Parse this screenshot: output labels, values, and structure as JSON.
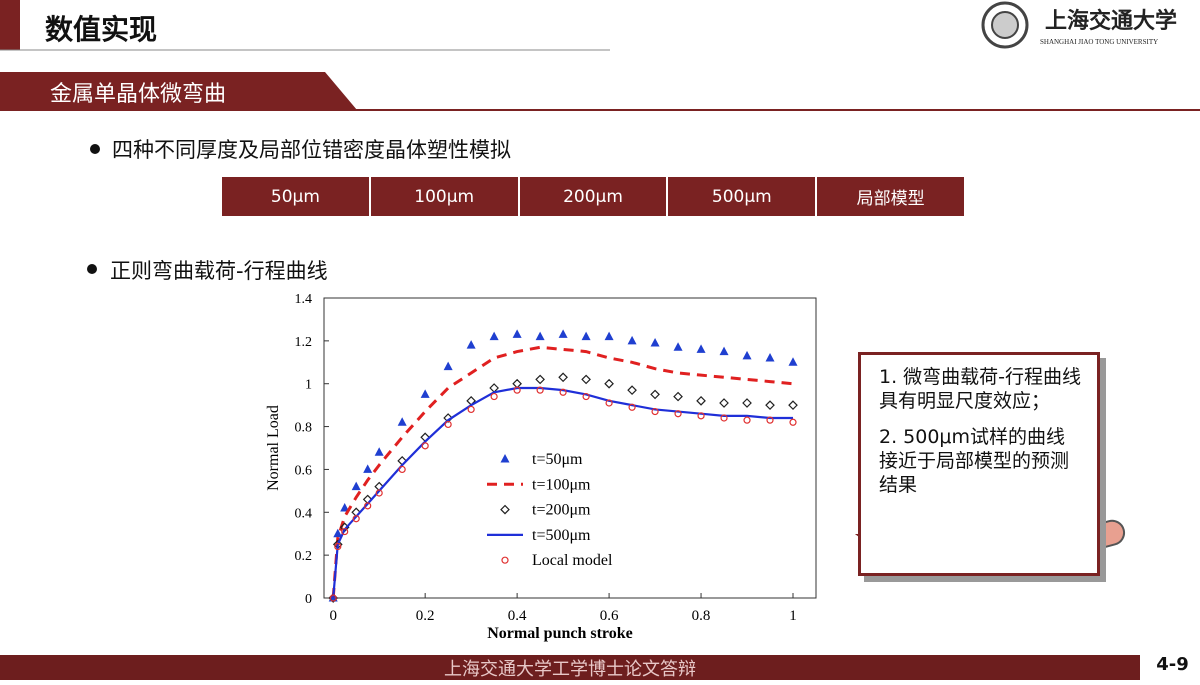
{
  "header": {
    "title": "数值实现",
    "university": "上海交通大学",
    "university_en": "SHANGHAI JIAO TONG UNIVERSITY"
  },
  "section": "金属单晶体微弯曲",
  "bullets": [
    "四种不同厚度及局部位错密度晶体塑性模拟",
    "正则弯曲载荷-行程曲线"
  ],
  "tabs": [
    "50μm",
    "100μm",
    "200μm",
    "500μm",
    "局部模型"
  ],
  "note": {
    "items": [
      "1. 微弯曲载荷-行程曲线具有明显尺度效应；",
      "2. 500μm试样的曲线接近于局部模型的预测结果"
    ]
  },
  "footer": {
    "text": "上海交通大学工学博士论文答辩",
    "page": "4-9"
  },
  "chart_data": {
    "type": "scatter",
    "xlabel": "Normal punch stroke",
    "ylabel": "Normal Load",
    "x": [
      0,
      0.01,
      0.025,
      0.05,
      0.075,
      0.1,
      0.15,
      0.2,
      0.25,
      0.3,
      0.35,
      0.4,
      0.45,
      0.5,
      0.55,
      0.6,
      0.65,
      0.7,
      0.75,
      0.8,
      0.85,
      0.9,
      0.95,
      1.0
    ],
    "series": [
      {
        "name": "t=50μm",
        "color": "#1f3fd0",
        "marker": "triangle",
        "values": [
          0,
          0.3,
          0.42,
          0.52,
          0.6,
          0.68,
          0.82,
          0.95,
          1.08,
          1.18,
          1.22,
          1.23,
          1.22,
          1.23,
          1.22,
          1.22,
          1.2,
          1.19,
          1.17,
          1.16,
          1.15,
          1.13,
          1.12,
          1.1
        ]
      },
      {
        "name": "t=100μm",
        "color": "#e02020",
        "marker": "dash",
        "values": [
          0,
          0.28,
          0.38,
          0.47,
          0.55,
          0.62,
          0.75,
          0.87,
          0.98,
          1.05,
          1.12,
          1.15,
          1.17,
          1.16,
          1.15,
          1.12,
          1.1,
          1.07,
          1.05,
          1.04,
          1.03,
          1.02,
          1.01,
          1.0
        ]
      },
      {
        "name": "t=200μm",
        "color": "#222222",
        "marker": "diamond",
        "values": [
          0,
          0.25,
          0.33,
          0.4,
          0.46,
          0.52,
          0.64,
          0.75,
          0.84,
          0.92,
          0.98,
          1.0,
          1.02,
          1.03,
          1.02,
          1.0,
          0.97,
          0.95,
          0.94,
          0.92,
          0.91,
          0.91,
          0.9,
          0.9
        ]
      },
      {
        "name": "t=500μm",
        "color": "#1f2fd8",
        "marker": "line",
        "values": [
          0,
          0.25,
          0.32,
          0.38,
          0.44,
          0.5,
          0.62,
          0.73,
          0.83,
          0.9,
          0.96,
          0.98,
          0.98,
          0.97,
          0.95,
          0.92,
          0.9,
          0.88,
          0.87,
          0.86,
          0.85,
          0.85,
          0.84,
          0.84
        ]
      },
      {
        "name": "Local model",
        "color": "#e03030",
        "marker": "circle",
        "values": [
          0,
          0.24,
          0.31,
          0.37,
          0.43,
          0.49,
          0.6,
          0.71,
          0.81,
          0.88,
          0.94,
          0.97,
          0.97,
          0.96,
          0.94,
          0.91,
          0.89,
          0.87,
          0.86,
          0.85,
          0.84,
          0.83,
          0.83,
          0.82
        ]
      }
    ],
    "xlim": [
      -0.02,
      1.05
    ],
    "ylim": [
      0,
      1.4
    ],
    "xticks": [
      0,
      0.2,
      0.4,
      0.6,
      0.8,
      1
    ],
    "yticks": [
      0,
      0.2,
      0.4,
      0.6,
      0.8,
      1,
      1.2,
      1.4
    ],
    "legend": "center"
  }
}
